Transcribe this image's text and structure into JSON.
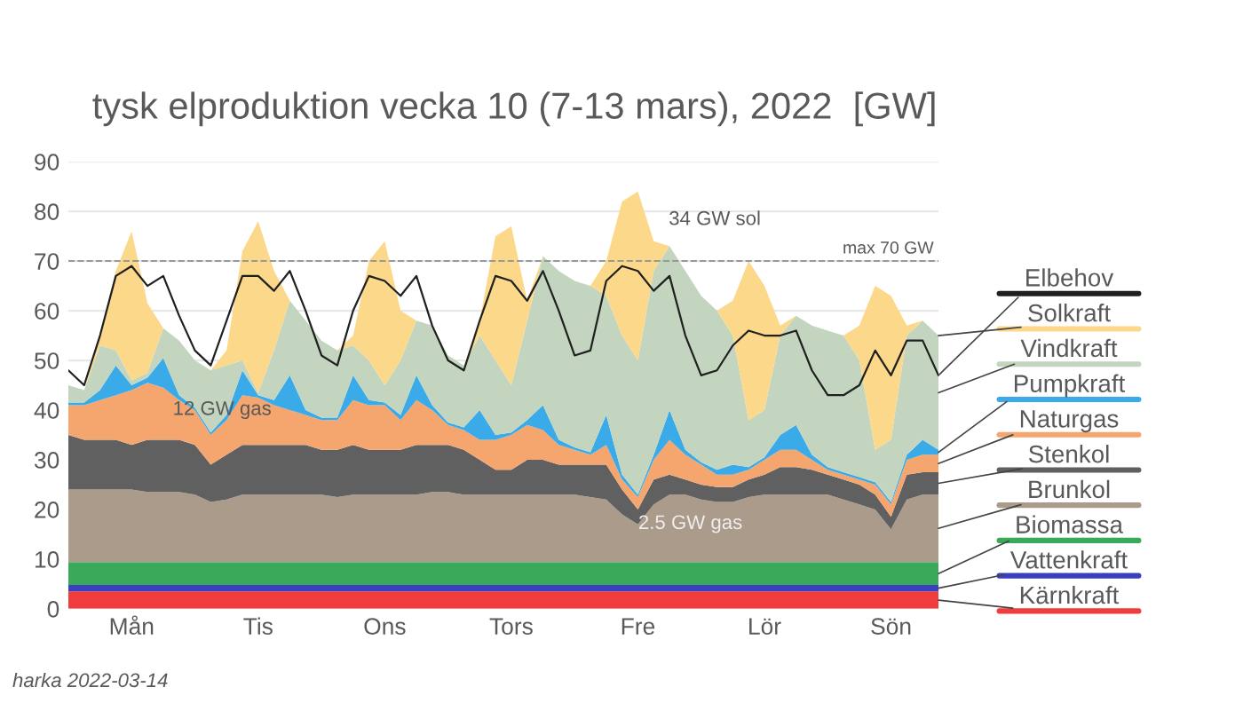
{
  "chart_data": {
    "type": "area",
    "stacked": true,
    "title": "tysk elproduktion vecka 10 (7-13 mars), 2022  [GW]",
    "categories": [
      null,
      null,
      null,
      null,
      "Mån",
      null,
      null,
      null,
      null,
      null,
      null,
      null,
      "Tis",
      null,
      null,
      null,
      null,
      null,
      null,
      null,
      "Ons",
      null,
      null,
      null,
      null,
      null,
      null,
      null,
      "Tors",
      null,
      null,
      null,
      null,
      null,
      null,
      null,
      "Fre",
      null,
      null,
      null,
      null,
      null,
      null,
      null,
      "Lör",
      null,
      null,
      null,
      null,
      null,
      null,
      null,
      "Sön",
      null,
      null,
      null
    ],
    "ylim": [
      0,
      90
    ],
    "yticks": [
      0,
      10,
      20,
      30,
      40,
      50,
      60,
      70,
      80,
      90
    ],
    "grid": "y",
    "legend": "right",
    "series": [
      {
        "name": "Kärnkraft",
        "color": "#f03c3c",
        "values": [
          3.5,
          3.5,
          3.5,
          3.5,
          3.5,
          3.5,
          3.5,
          3.5,
          3.5,
          3.5,
          3.5,
          3.5,
          3.5,
          3.5,
          3.5,
          3.5,
          3.5,
          3.5,
          3.5,
          3.5,
          3.5,
          3.5,
          3.5,
          3.5,
          3.5,
          3.5,
          3.5,
          3.5,
          3.5,
          3.5,
          3.5,
          3.5,
          3.5,
          3.5,
          3.5,
          3.5,
          3.5,
          3.5,
          3.5,
          3.5,
          3.5,
          3.5,
          3.5,
          3.5,
          3.5,
          3.5,
          3.5,
          3.5,
          3.5,
          3.5,
          3.5,
          3.5,
          3.5,
          3.5,
          3.5,
          3.5
        ]
      },
      {
        "name": "Vattenkraft",
        "color": "#3a3fc0",
        "values": [
          1.3,
          1.3,
          1.3,
          1.3,
          1.3,
          1.3,
          1.3,
          1.3,
          1.3,
          1.3,
          1.3,
          1.3,
          1.3,
          1.3,
          1.3,
          1.3,
          1.3,
          1.3,
          1.3,
          1.3,
          1.3,
          1.3,
          1.3,
          1.3,
          1.3,
          1.3,
          1.3,
          1.3,
          1.3,
          1.3,
          1.3,
          1.3,
          1.3,
          1.3,
          1.3,
          1.3,
          1.3,
          1.3,
          1.3,
          1.3,
          1.3,
          1.3,
          1.3,
          1.3,
          1.3,
          1.3,
          1.3,
          1.3,
          1.3,
          1.3,
          1.3,
          1.3,
          1.3,
          1.3,
          1.3,
          1.3
        ]
      },
      {
        "name": "Biomassa",
        "color": "#3aaa5a",
        "values": [
          4.6,
          4.6,
          4.6,
          4.6,
          4.6,
          4.6,
          4.6,
          4.6,
          4.6,
          4.6,
          4.6,
          4.6,
          4.6,
          4.6,
          4.6,
          4.6,
          4.6,
          4.6,
          4.6,
          4.6,
          4.6,
          4.6,
          4.6,
          4.6,
          4.6,
          4.6,
          4.6,
          4.6,
          4.6,
          4.6,
          4.6,
          4.6,
          4.6,
          4.6,
          4.6,
          4.6,
          4.6,
          4.6,
          4.6,
          4.6,
          4.6,
          4.6,
          4.6,
          4.6,
          4.6,
          4.6,
          4.6,
          4.6,
          4.6,
          4.6,
          4.6,
          4.6,
          4.6,
          4.6,
          4.6,
          4.6
        ]
      },
      {
        "name": "Brunkol",
        "color": "#ab9b8b",
        "values": [
          14.6,
          14.6,
          14.6,
          14.6,
          14.6,
          14.1,
          14.1,
          14.1,
          13.6,
          12.1,
          12.6,
          13.6,
          13.6,
          13.6,
          13.6,
          13.6,
          13.6,
          13.1,
          13.6,
          13.6,
          13.6,
          13.6,
          13.6,
          14.1,
          14.1,
          13.6,
          13.6,
          13.6,
          13.6,
          13.6,
          13.6,
          13.6,
          13.6,
          13.1,
          12.6,
          9.6,
          7.6,
          11.6,
          13.6,
          13.6,
          12.6,
          12.1,
          12.1,
          13.1,
          13.6,
          13.6,
          13.6,
          13.6,
          13.6,
          12.6,
          11.6,
          10.6,
          6.6,
          12.6,
          13.6,
          13.6
        ]
      },
      {
        "name": "Stenkol",
        "color": "#606060",
        "values": [
          11,
          10,
          10,
          10,
          9,
          10.5,
          10.5,
          10.5,
          10,
          7.5,
          9,
          10,
          10,
          10,
          10,
          10,
          9,
          9.5,
          10,
          9,
          9,
          9,
          10,
          9.5,
          9.5,
          9,
          7,
          5,
          5,
          7,
          7,
          6,
          6,
          6.5,
          7,
          5,
          3,
          5,
          4,
          3,
          3,
          3,
          3,
          3.5,
          4,
          5.5,
          5.5,
          5,
          4,
          4,
          4,
          3,
          2.5,
          5,
          4.5,
          4.5
        ]
      },
      {
        "name": "Naturgas",
        "color": "#f5a66e",
        "values": [
          6,
          7,
          8,
          9,
          11,
          11.5,
          10.5,
          8,
          7,
          6,
          7,
          10,
          9.5,
          8,
          7,
          6,
          6,
          6,
          9,
          9,
          9,
          6,
          9,
          7,
          4,
          4,
          4,
          6,
          7,
          7,
          6,
          4,
          3,
          2,
          4,
          2,
          2.5,
          4,
          7,
          5,
          4,
          2.5,
          2.5,
          2,
          3,
          3.5,
          3.5,
          2,
          1,
          1,
          1,
          2,
          2.5,
          3,
          3.5,
          3.5
        ]
      },
      {
        "name": "Pumpkraft",
        "color": "#3aaae8",
        "values": [
          0.5,
          0.5,
          2,
          6,
          1,
          1,
          6,
          1,
          0.5,
          0.5,
          1,
          5,
          0.5,
          1,
          7,
          1,
          0.5,
          0.5,
          5,
          1,
          0.5,
          1,
          5,
          1,
          0.5,
          0.5,
          6,
          1,
          0.5,
          1,
          5,
          1,
          0.5,
          0.5,
          6,
          1,
          0.5,
          1,
          6,
          1,
          0.5,
          1,
          2,
          0.5,
          0.5,
          3,
          5,
          1,
          0.5,
          0.5,
          0.5,
          0.5,
          0.5,
          1,
          3,
          1
        ]
      },
      {
        "name": "Vindkraft",
        "color": "#c3d5bf",
        "values": [
          3.5,
          2.5,
          9,
          3,
          1,
          1,
          6,
          11,
          9.5,
          12.5,
          10,
          2,
          0.5,
          10,
          15,
          18,
          15.5,
          13.5,
          6,
          8,
          3.5,
          11,
          11,
          16,
          13.5,
          12.5,
          15,
          15,
          9.5,
          20,
          30,
          34,
          33.5,
          33.5,
          24,
          28,
          27,
          37,
          33,
          36,
          33.5,
          32,
          26,
          9.5,
          9.5,
          20,
          22,
          26,
          27.5,
          27.5,
          23.5,
          6.5,
          12.5,
          24,
          24,
          23
        ]
      },
      {
        "name": "Solkraft",
        "color": "#fcd88a",
        "values": [
          0,
          0,
          2,
          16,
          30,
          14,
          0,
          0,
          0,
          0,
          3,
          22,
          34.5,
          16,
          0,
          0,
          0,
          0,
          2,
          20,
          29,
          10,
          0,
          0,
          0,
          0,
          3,
          25,
          32,
          4,
          0,
          0,
          0,
          0,
          7,
          27,
          34,
          6,
          0,
          0,
          0,
          0,
          7,
          32,
          25,
          2,
          0,
          0,
          0,
          0,
          7,
          33,
          29,
          2,
          0,
          0
        ]
      },
      {
        "name": "Elbehov",
        "type": "line",
        "color": "#202020",
        "values": [
          48,
          45,
          55,
          67,
          69,
          65,
          67,
          59,
          52,
          49,
          58,
          67,
          67,
          64,
          68,
          60,
          51,
          49,
          60,
          67,
          66,
          63,
          67,
          57,
          50,
          48,
          58,
          67,
          66,
          62,
          68,
          60,
          51,
          52,
          66,
          69,
          68,
          64,
          67,
          55,
          47,
          48,
          53,
          56,
          55,
          55,
          56,
          48,
          43,
          43,
          45,
          52,
          47,
          54,
          54,
          47
        ]
      }
    ],
    "ref_lines": [
      {
        "axis": "y",
        "value": 70,
        "label": "max 70 GW",
        "line_style": "dashed",
        "color": "#999999"
      }
    ],
    "annotations": [
      "34 GW sol",
      "12 GW gas",
      "2.5 GW gas",
      "harka 2022-03-14"
    ]
  }
}
